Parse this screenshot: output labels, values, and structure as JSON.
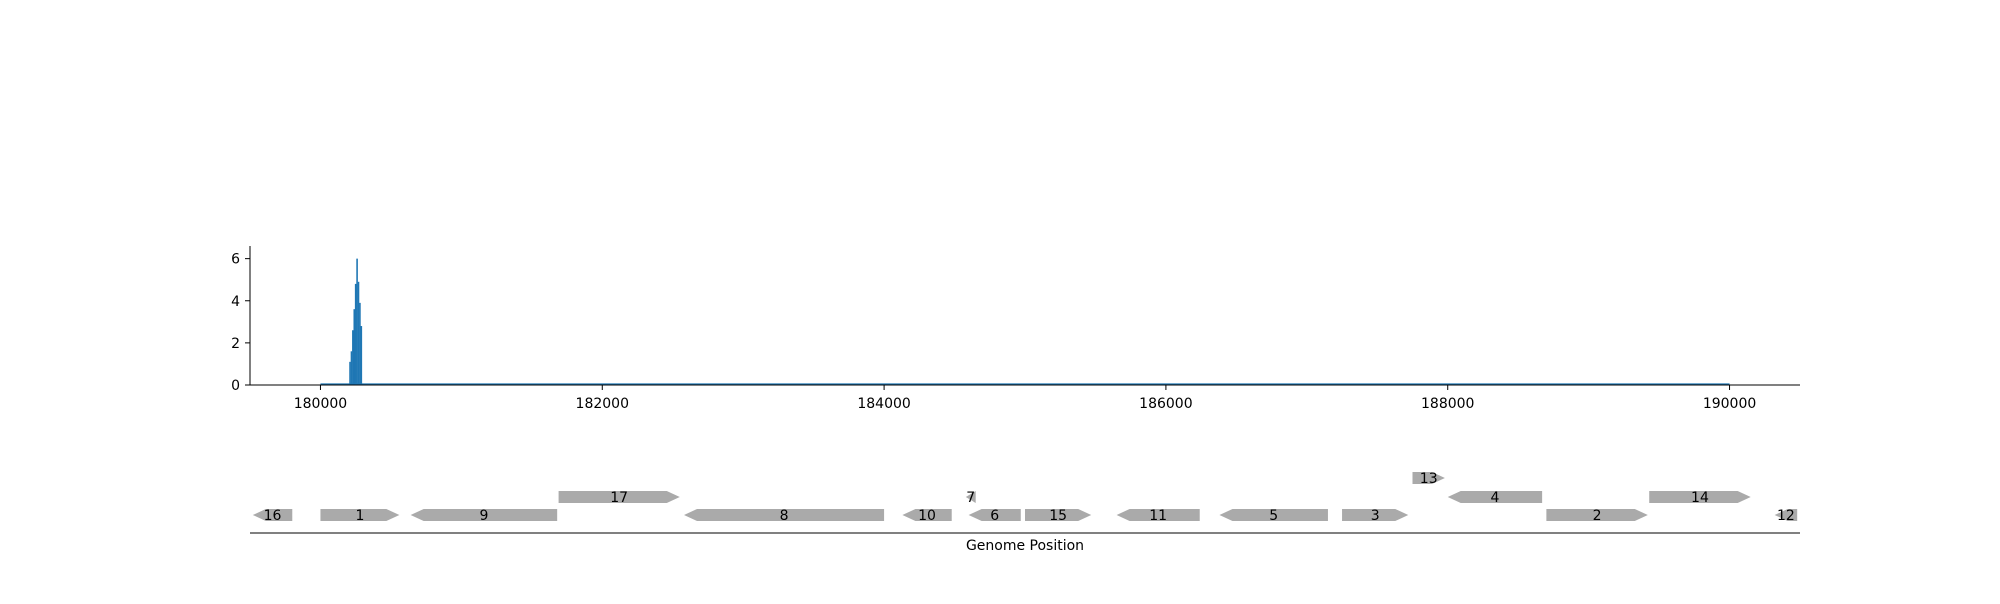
{
  "chart_data": [
    {
      "type": "bar",
      "title": "",
      "xlabel": "",
      "ylabel": "",
      "xlim": [
        179500,
        190500
      ],
      "ylim": [
        0,
        6.6
      ],
      "yticks": [
        0,
        2,
        4,
        6
      ],
      "xticks": [
        180000,
        182000,
        184000,
        186000,
        188000,
        190000
      ],
      "xtick_labels": [
        "180000",
        "182000",
        "184000",
        "186000",
        "188000",
        "190000"
      ],
      "ytick_labels": [
        "0",
        "2",
        "4",
        "6"
      ],
      "color": "#1f77b4",
      "baseline_range": [
        180000,
        190000
      ],
      "bars": [
        {
          "x": 180210,
          "y": 1.1
        },
        {
          "x": 180220,
          "y": 1.6
        },
        {
          "x": 180230,
          "y": 2.6
        },
        {
          "x": 180240,
          "y": 3.6
        },
        {
          "x": 180250,
          "y": 4.8
        },
        {
          "x": 180260,
          "y": 6.0
        },
        {
          "x": 180270,
          "y": 4.9
        },
        {
          "x": 180280,
          "y": 3.9
        },
        {
          "x": 180290,
          "y": 2.8
        }
      ]
    },
    {
      "type": "gene-track",
      "xlabel": "Genome Position",
      "xlim": [
        179500,
        190500
      ],
      "color": "#aaaaaa",
      "genes": [
        {
          "label": "16",
          "start": 179520,
          "end": 179800,
          "strand": "-",
          "row": 0
        },
        {
          "label": "1",
          "start": 180000,
          "end": 180560,
          "strand": "+",
          "row": 0
        },
        {
          "label": "9",
          "start": 180640,
          "end": 181680,
          "strand": "-",
          "row": 0
        },
        {
          "label": "17",
          "start": 181690,
          "end": 182550,
          "strand": "+",
          "row": 1
        },
        {
          "label": "8",
          "start": 182580,
          "end": 184000,
          "strand": "-",
          "row": 0
        },
        {
          "label": "10",
          "start": 184130,
          "end": 184480,
          "strand": "-",
          "row": 0
        },
        {
          "label": "7",
          "start": 184580,
          "end": 184650,
          "strand": "-",
          "row": 1
        },
        {
          "label": "6",
          "start": 184600,
          "end": 184970,
          "strand": "-",
          "row": 0
        },
        {
          "label": "15",
          "start": 185000,
          "end": 185470,
          "strand": "+",
          "row": 0
        },
        {
          "label": "11",
          "start": 185650,
          "end": 186240,
          "strand": "-",
          "row": 0
        },
        {
          "label": "5",
          "start": 186380,
          "end": 187150,
          "strand": "-",
          "row": 0
        },
        {
          "label": "3",
          "start": 187250,
          "end": 187720,
          "strand": "+",
          "row": 0
        },
        {
          "label": "13",
          "start": 187750,
          "end": 187980,
          "strand": "+",
          "row": 2
        },
        {
          "label": "4",
          "start": 188000,
          "end": 188670,
          "strand": "-",
          "row": 1
        },
        {
          "label": "2",
          "start": 188700,
          "end": 189420,
          "strand": "+",
          "row": 0
        },
        {
          "label": "14",
          "start": 189430,
          "end": 190150,
          "strand": "+",
          "row": 1
        },
        {
          "label": "12",
          "start": 190320,
          "end": 190480,
          "strand": "-",
          "row": 0
        }
      ]
    }
  ]
}
